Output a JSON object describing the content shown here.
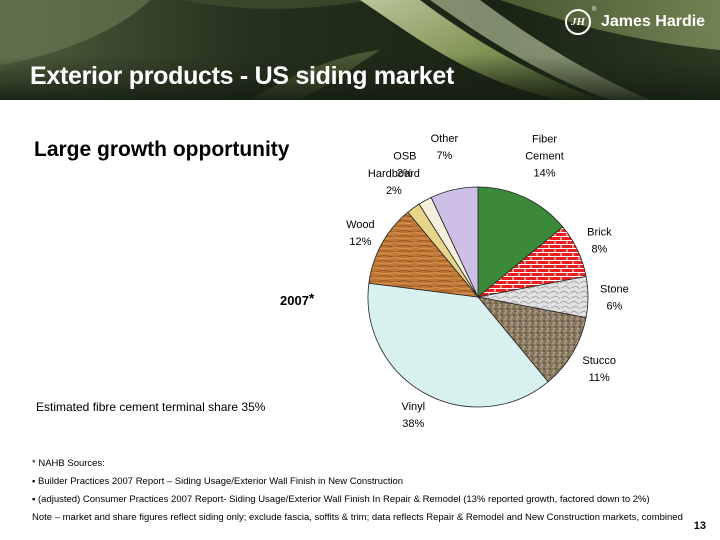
{
  "header": {
    "title": "Exterior products - US siding market",
    "logo_mark": "JH",
    "logo_reg": "®",
    "logo_text": "James Hardie"
  },
  "subtitle": "Large growth opportunity",
  "year_label": "2007",
  "year_marker": "*",
  "estimate_text": "Estimated fibre cement terminal share 35%",
  "chart_data": {
    "type": "pie",
    "title": "",
    "slices": [
      {
        "label": [
          "Fiber",
          "Cement"
        ],
        "value": 14,
        "display": "14%",
        "color": "#3a8a3a",
        "pattern": "solid"
      },
      {
        "label": [
          "Brick"
        ],
        "value": 8,
        "display": "8%",
        "color": "#e82020",
        "pattern": "brick"
      },
      {
        "label": [
          "Stone"
        ],
        "value": 6,
        "display": "6%",
        "color": "#d8d8d8",
        "pattern": "stone"
      },
      {
        "label": [
          "Stucco"
        ],
        "value": 11,
        "display": "11%",
        "color": "#8a7a64",
        "pattern": "stucco"
      },
      {
        "label": [
          "Vinyl"
        ],
        "value": 38,
        "display": "38%",
        "color": "#d8f0ee",
        "pattern": "solid"
      },
      {
        "label": [
          "Wood"
        ],
        "value": 12,
        "display": "12%",
        "color": "#c07836",
        "pattern": "wood"
      },
      {
        "label": [
          "Hardboard"
        ],
        "value": 2,
        "display": "2%",
        "color": "#e8d48a",
        "pattern": "solid"
      },
      {
        "label": [
          "OSB"
        ],
        "value": 2,
        "display": "2%",
        "color": "#f4f0dc",
        "pattern": "solid"
      },
      {
        "label": [
          "Other"
        ],
        "value": 7,
        "display": "7%",
        "color": "#cdbfe6",
        "pattern": "solid"
      }
    ]
  },
  "footnotes": [
    "* NAHB Sources:",
    "▪  Builder Practices 2007 Report – Siding Usage/Exterior Wall Finish in New Construction",
    "▪  (adjusted) Consumer Practices 2007 Report- Siding Usage/Exterior Wall Finish In Repair & Remodel (13% reported growth, factored down to 2%)",
    "Note – market and share figures reflect siding only; exclude fascia, soffits & trim; data reflects Repair & Remodel and New Construction markets, combined"
  ],
  "page_number": "13"
}
